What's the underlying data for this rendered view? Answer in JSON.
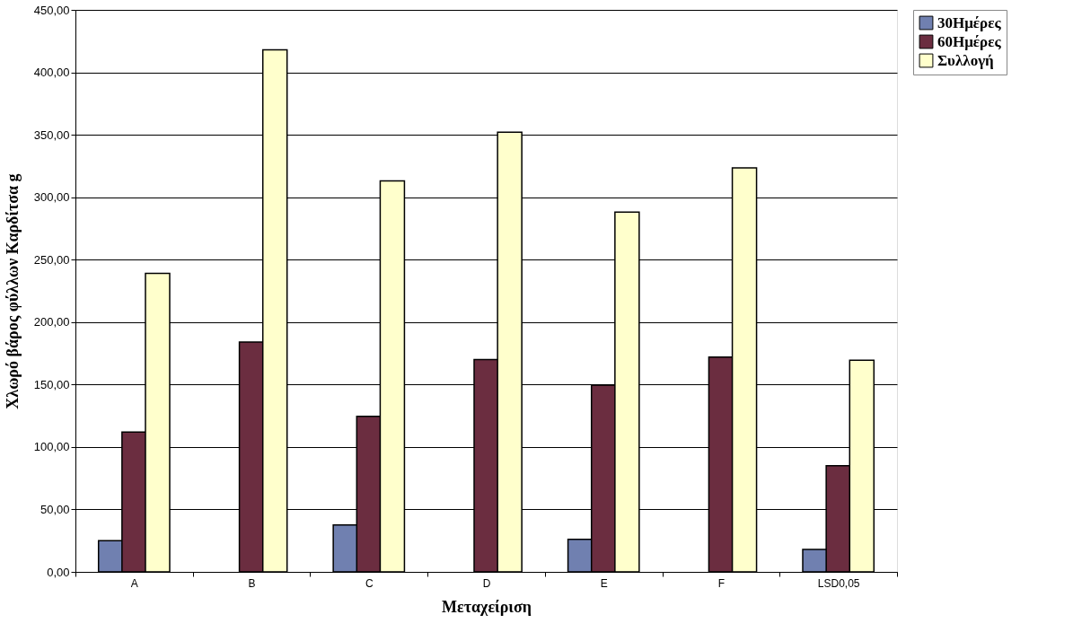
{
  "chart_data": {
    "type": "bar",
    "xlabel": "Μεταχείριση",
    "ylabel": "Χλωρό βάρος φύλλων Καρδίτσα g",
    "categories": [
      "A",
      "B",
      "C",
      "D",
      "E",
      "F",
      "LSD0,05"
    ],
    "series": [
      {
        "name": "30Ημέρες",
        "color": "#7080b0",
        "values": [
          25,
          null,
          37.5,
          null,
          26,
          null,
          18
        ]
      },
      {
        "name": "60Ημέρες",
        "color": "#6b2d40",
        "values": [
          112,
          184,
          124.5,
          170,
          149.5,
          172,
          85
        ]
      },
      {
        "name": "Συλλογή",
        "color": "#ffffcc",
        "values": [
          239,
          418,
          313,
          352,
          288,
          323.5,
          169.5
        ]
      }
    ],
    "ylim": [
      0,
      450
    ],
    "yticks": [
      {
        "value": 0,
        "label": "0,00"
      },
      {
        "value": 50,
        "label": "50,00"
      },
      {
        "value": 100,
        "label": "100,00"
      },
      {
        "value": 150,
        "label": "150,00"
      },
      {
        "value": 200,
        "label": "200,00"
      },
      {
        "value": 250,
        "label": "250,00"
      },
      {
        "value": 300,
        "label": "300,00"
      },
      {
        "value": 350,
        "label": "350,00"
      },
      {
        "value": 400,
        "label": "400,00"
      },
      {
        "value": 450,
        "label": "450,00"
      }
    ],
    "grid": "y",
    "legend": "right"
  }
}
